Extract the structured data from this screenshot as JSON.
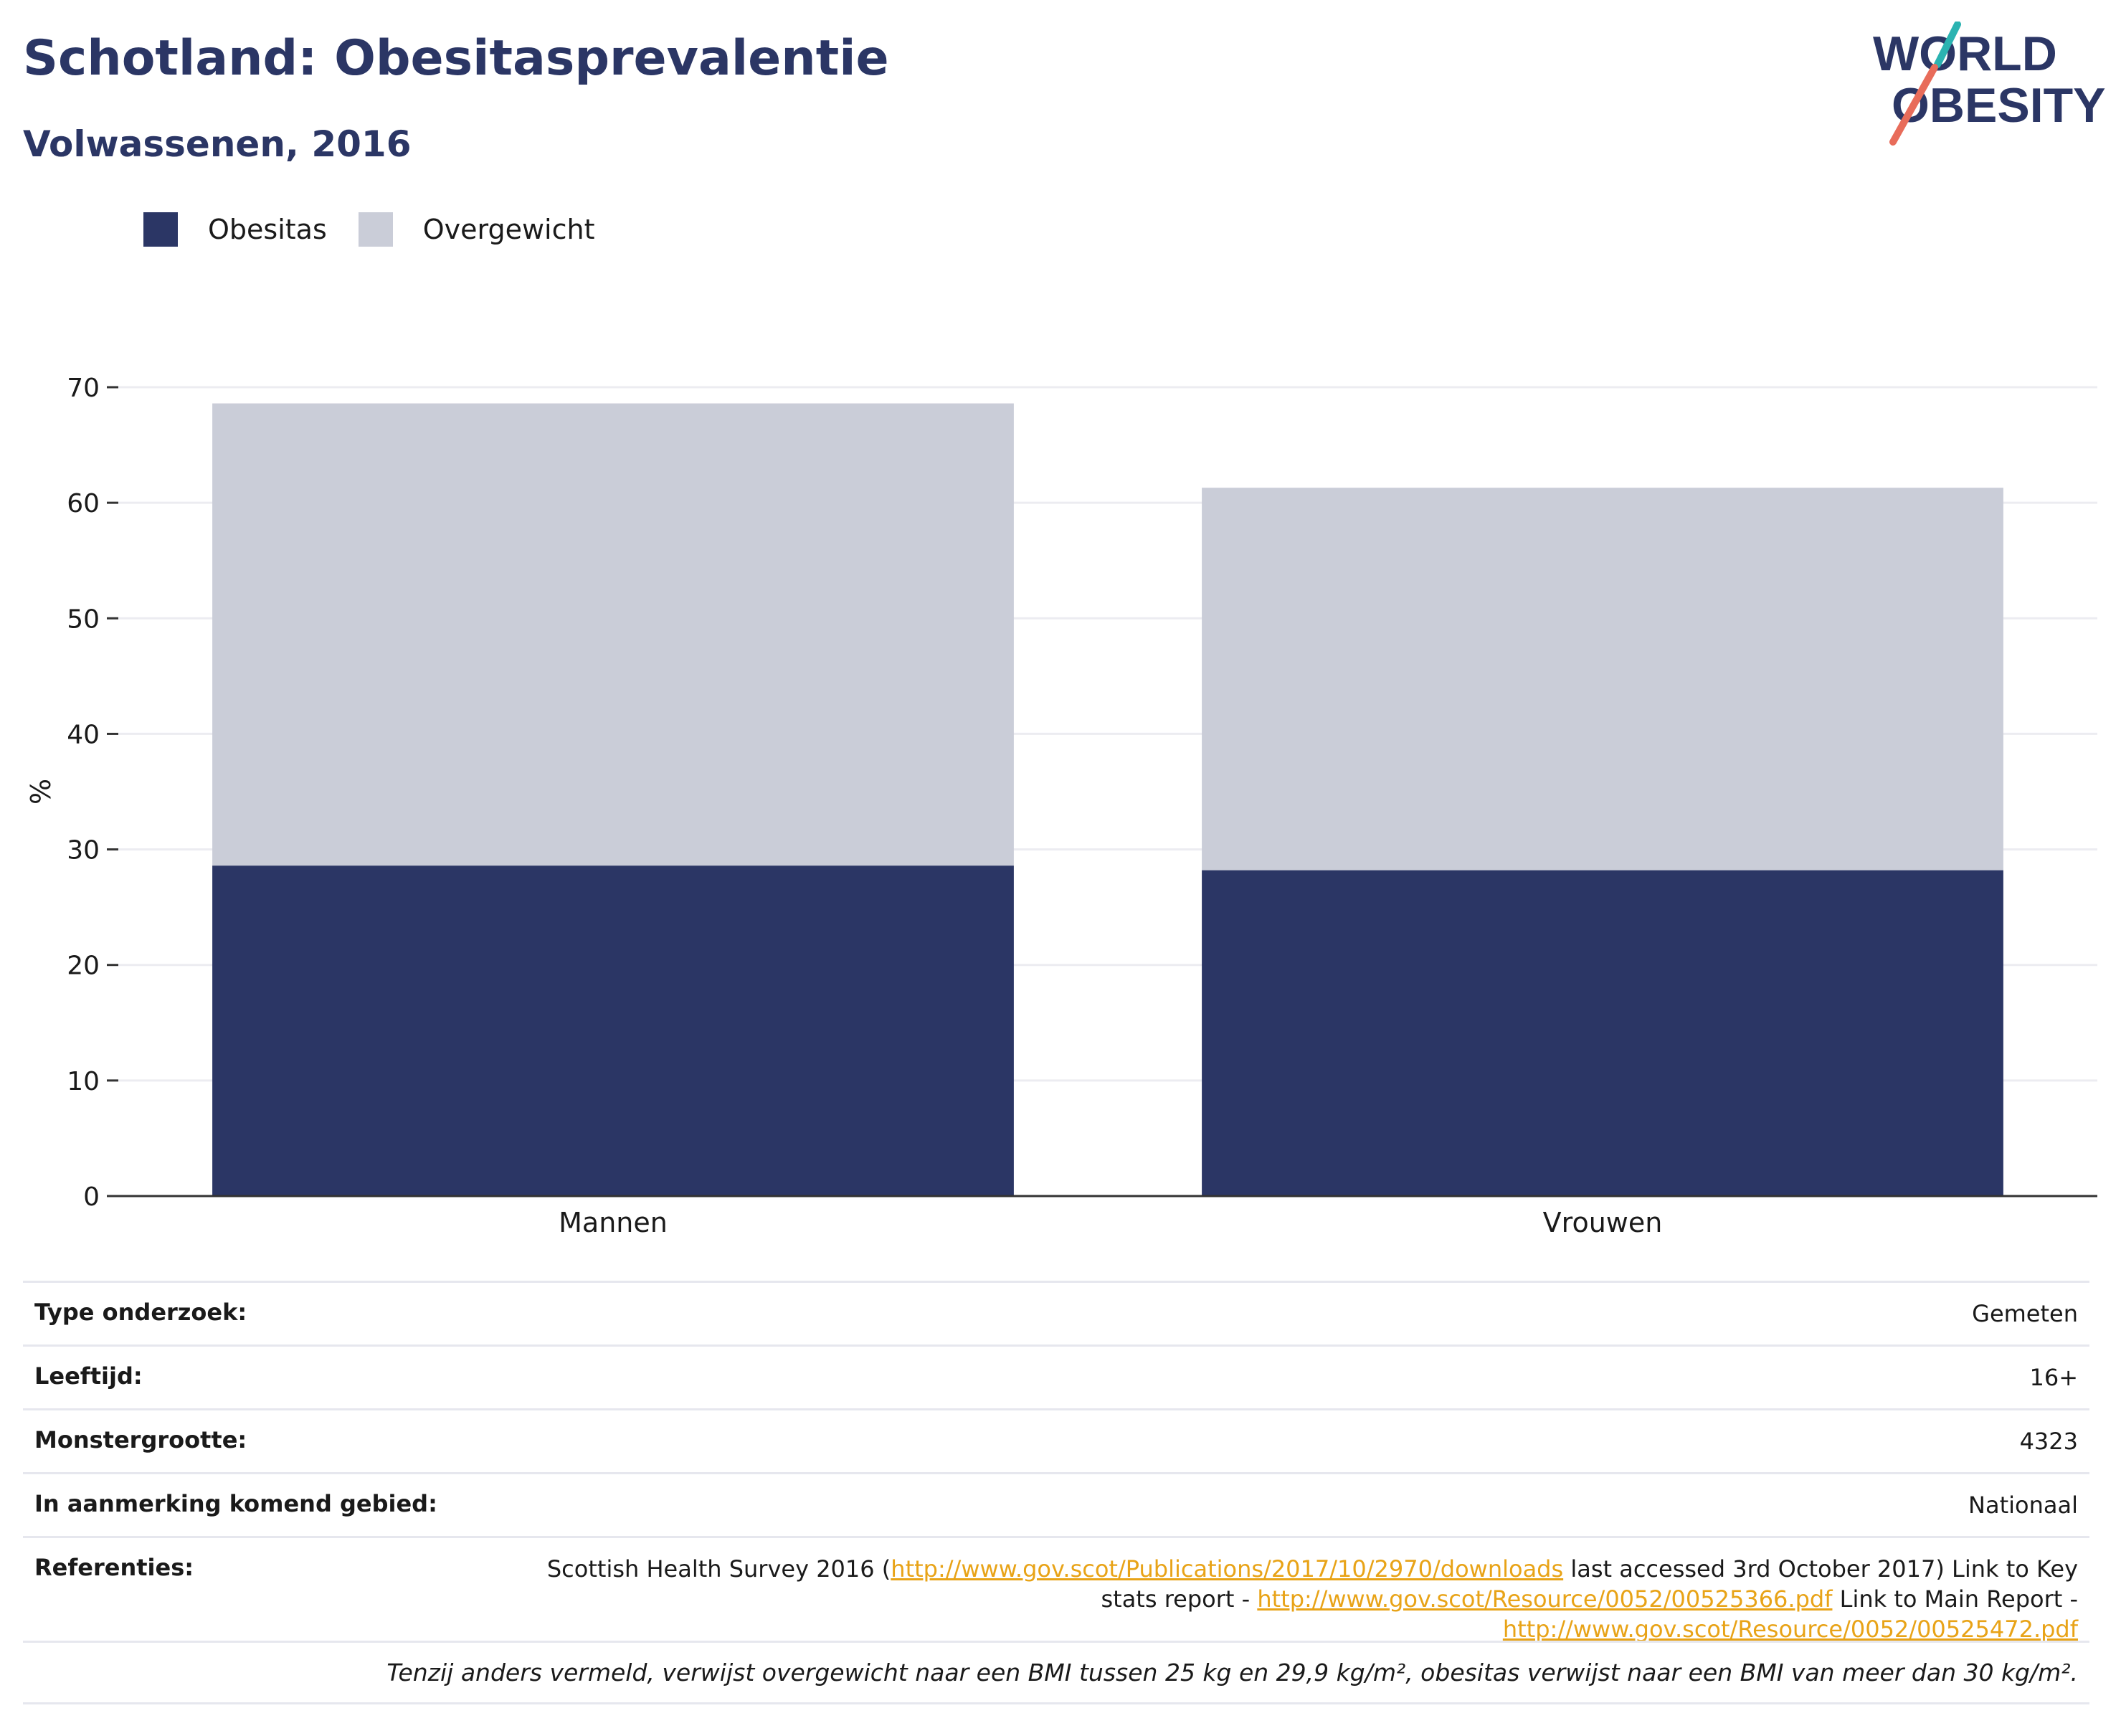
{
  "title": "Schotland: Obesitasprevalentie",
  "subtitle": "Volwassenen, 2016",
  "logo": {
    "line1": "WORLD",
    "line2": "OBESITY"
  },
  "colors": {
    "obesity": "#2b3665",
    "overweight": "#cacdd8",
    "title": "#2b3665",
    "link": "#e8a317",
    "grid": "#ececf1"
  },
  "chart_data": {
    "type": "bar",
    "stacked": true,
    "categories": [
      "Mannen",
      "Vrouwen"
    ],
    "series": [
      {
        "name": "Obesitas",
        "values": [
          28.6,
          28.2
        ],
        "color": "#2b3665"
      },
      {
        "name": "Overgewicht",
        "values": [
          40.0,
          33.1
        ],
        "color": "#cacdd8"
      }
    ],
    "ylabel": "%",
    "ylim": [
      0,
      70
    ],
    "yticks": [
      0,
      10,
      20,
      30,
      40,
      50,
      60,
      70
    ],
    "grid": true,
    "legend_position": "top-left"
  },
  "meta": [
    {
      "key": "Type onderzoek:",
      "value": "Gemeten"
    },
    {
      "key": "Leeftijd:",
      "value": "16+"
    },
    {
      "key": "Monstergrootte:",
      "value": "4323"
    },
    {
      "key": "In aanmerking komend gebied:",
      "value": "Nationaal"
    }
  ],
  "references": {
    "key": "Referenties:",
    "part1": "Scottish Health Survey 2016 (",
    "link1": "http://www.gov.scot/Publications/2017/10/2970/downloads",
    "part2": " last accessed 3rd October 2017) Link to Key",
    "part3": "stats report - ",
    "link2": "http://www.gov.scot/Resource/0052/00525366.pdf",
    "part4": " Link to Main Report -",
    "link3": "http://www.gov.scot/Resource/0052/00525472.pdf"
  },
  "footnote": "Tenzij anders vermeld, verwijst overgewicht naar een BMI tussen 25 kg en 29,9 kg/m², obesitas verwijst naar een BMI van meer dan 30 kg/m²."
}
